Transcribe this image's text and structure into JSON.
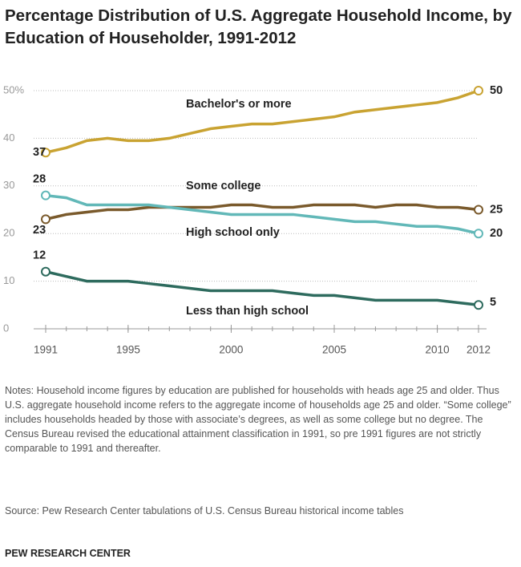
{
  "chart_data": {
    "type": "line",
    "title": "Percentage Distribution of U.S. Aggregate Household Income, by Education of Householder, 1991-2012",
    "x": [
      1991,
      1992,
      1993,
      1994,
      1995,
      1996,
      1997,
      1998,
      1999,
      2000,
      2001,
      2002,
      2003,
      2004,
      2005,
      2006,
      2007,
      2008,
      2009,
      2010,
      2011,
      2012
    ],
    "series": [
      {
        "name": "Bachelor's or more",
        "color": "#c9a332",
        "values": [
          37,
          38,
          39.5,
          40,
          39.5,
          39.5,
          40,
          41,
          42,
          42.5,
          43,
          43,
          43.5,
          44,
          44.5,
          45.5,
          46,
          46.5,
          47,
          47.5,
          48.5,
          50
        ]
      },
      {
        "name": "Some college",
        "color": "#7a5a2c",
        "values": [
          23,
          24,
          24.5,
          25,
          25,
          25.5,
          25.5,
          25.5,
          25.5,
          26,
          26,
          25.5,
          25.5,
          26,
          26,
          26,
          25.5,
          26,
          26,
          25.5,
          25.5,
          25
        ]
      },
      {
        "name": "High school only",
        "color": "#62b8b8",
        "values": [
          28,
          27.5,
          26,
          26,
          26,
          26,
          25.5,
          25,
          24.5,
          24,
          24,
          24,
          24,
          23.5,
          23,
          22.5,
          22.5,
          22,
          21.5,
          21.5,
          21,
          20
        ]
      },
      {
        "name": "Less than high school",
        "color": "#2e6b5e",
        "values": [
          12,
          11,
          10,
          10,
          10,
          9.5,
          9,
          8.5,
          8,
          8,
          8,
          8,
          7.5,
          7,
          7,
          6.5,
          6,
          6,
          6,
          6,
          5.5,
          5
        ]
      }
    ],
    "xlim": [
      1991,
      2012
    ],
    "xticks": [
      1991,
      1995,
      2000,
      2005,
      2010,
      2012
    ],
    "ylim": [
      0,
      50
    ],
    "yticks": [
      0,
      10,
      20,
      30,
      40,
      {
        "value": 50,
        "label": "50%"
      }
    ],
    "grid": true,
    "notes": "Notes: Household income figures by education are published for households with heads age 25 and older. Thus U.S. aggregate household income refers to the aggregate income of households age 25 and older. “Some college” includes households headed by those with associate’s degrees, as well as some college but no degree. The Census Bureau revised the educational attainment classification in 1991, so pre 1991 figures are not strictly comparable to 1991 and thereafter.",
    "source": "Source: Pew Research Center tabulations of U.S. Census Bureau historical income tables",
    "footer": "PEW RESEARCH CENTER"
  }
}
